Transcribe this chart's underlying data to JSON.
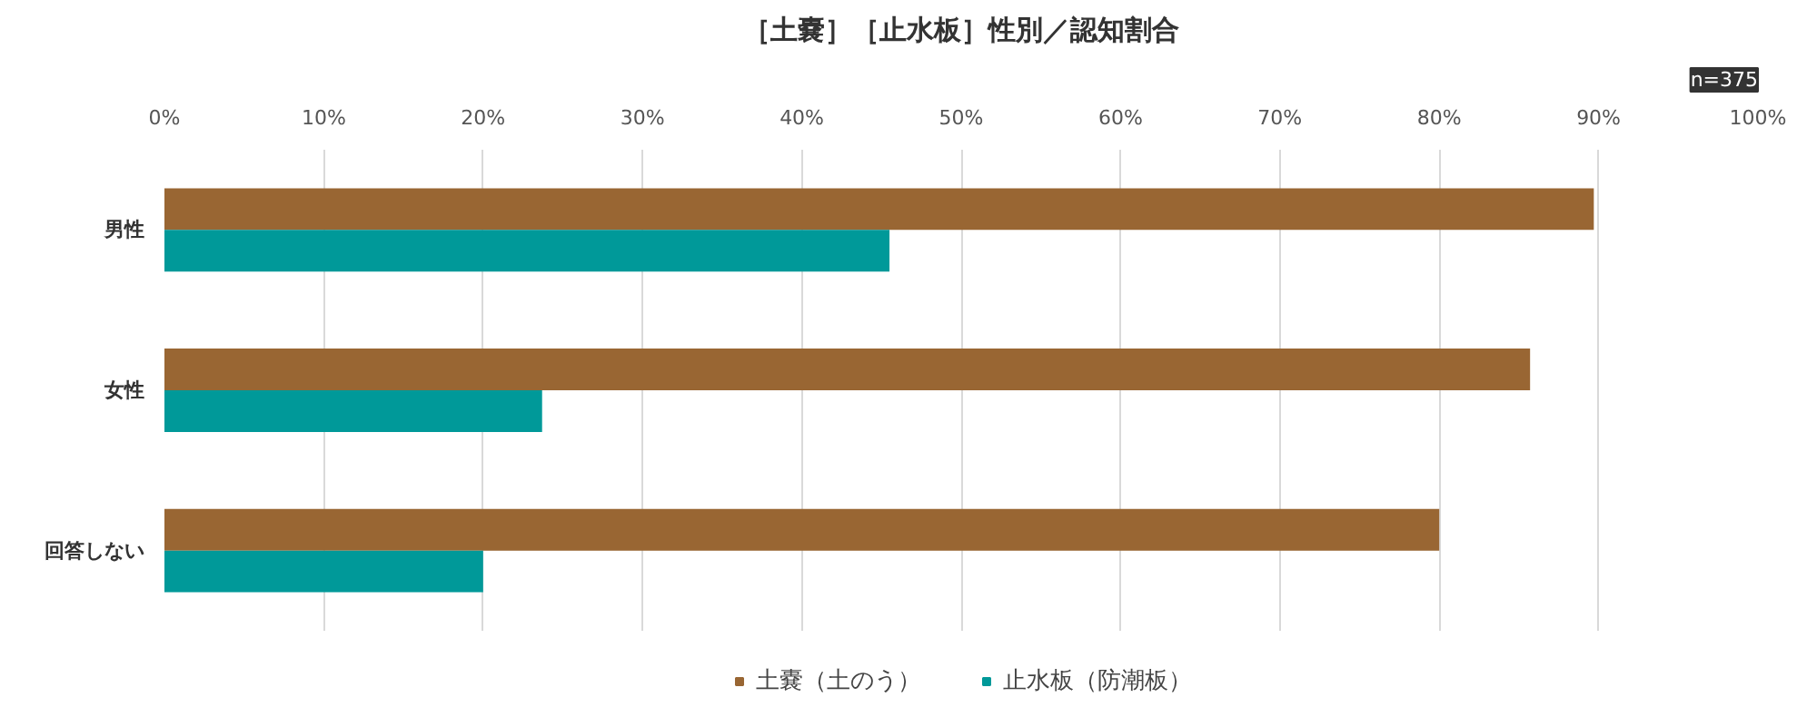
{
  "chart_data": {
    "type": "bar",
    "orientation": "horizontal",
    "title": "［土嚢］［止水板］性別／認知割合",
    "annotations": [
      "n=375"
    ],
    "categories": [
      "男性",
      "女性",
      "回答しない"
    ],
    "series": [
      {
        "name": "土嚢（土のう）",
        "color": "#996633",
        "values": [
          89.7,
          85.7,
          80.0
        ]
      },
      {
        "name": "止水板（防潮板）",
        "color": "#009999",
        "values": [
          45.5,
          23.7,
          20.0
        ]
      }
    ],
    "xlim": [
      0,
      100
    ],
    "xticks": [
      {
        "value": 0,
        "label": "0%"
      },
      {
        "value": 10,
        "label": "10%"
      },
      {
        "value": 20,
        "label": "20%"
      },
      {
        "value": 30,
        "label": "30%"
      },
      {
        "value": 40,
        "label": "40%"
      },
      {
        "value": 50,
        "label": "50%"
      },
      {
        "value": 60,
        "label": "60%"
      },
      {
        "value": 70,
        "label": "70%"
      },
      {
        "value": 80,
        "label": "80%"
      },
      {
        "value": 90,
        "label": "90%"
      },
      {
        "value": 100,
        "label": "100%"
      }
    ],
    "grid": "x",
    "legend": "bottom"
  }
}
